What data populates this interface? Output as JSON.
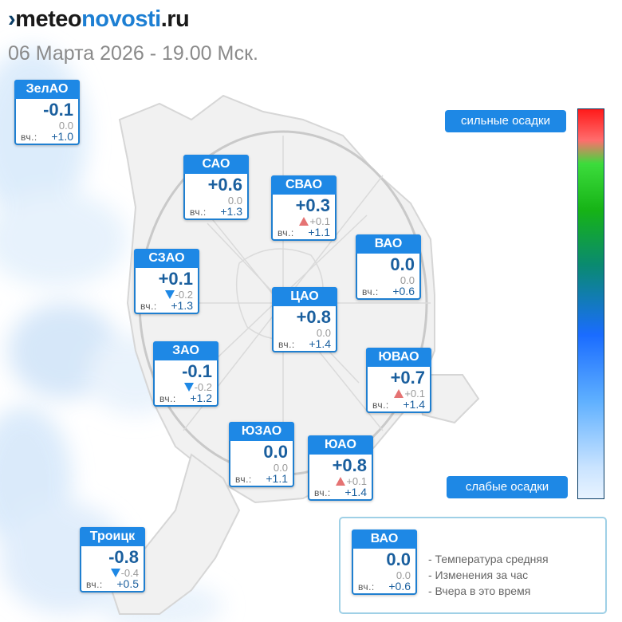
{
  "brand": {
    "prefix_mark": "›",
    "part1": "meteo",
    "part2": "novosti",
    "part3": ".ru"
  },
  "datetime": "06 Марта 2026 - 19.00 Мск.",
  "yesterday_label": "вч.:",
  "cards": [
    {
      "id": "zelao",
      "name": "ЗелАО",
      "temp": "-0.1",
      "change": "0.0",
      "trend": "none",
      "yesterday": "+1.0"
    },
    {
      "id": "sao",
      "name": "САО",
      "temp": "+0.6",
      "change": "0.0",
      "trend": "none",
      "yesterday": "+1.3"
    },
    {
      "id": "svao",
      "name": "СВАО",
      "temp": "+0.3",
      "change": "+0.1",
      "trend": "up",
      "yesterday": "+1.1"
    },
    {
      "id": "vao",
      "name": "ВАО",
      "temp": "0.0",
      "change": "0.0",
      "trend": "none",
      "yesterday": "+0.6"
    },
    {
      "id": "szao",
      "name": "СЗАО",
      "temp": "+0.1",
      "change": "-0.2",
      "trend": "down",
      "yesterday": "+1.3"
    },
    {
      "id": "cao",
      "name": "ЦАО",
      "temp": "+0.8",
      "change": "0.0",
      "trend": "none",
      "yesterday": "+1.4"
    },
    {
      "id": "zao",
      "name": "ЗАО",
      "temp": "-0.1",
      "change": "-0.2",
      "trend": "down",
      "yesterday": "+1.2"
    },
    {
      "id": "yuvao",
      "name": "ЮВАО",
      "temp": "+0.7",
      "change": "+0.1",
      "trend": "up",
      "yesterday": "+1.4"
    },
    {
      "id": "yuzao",
      "name": "ЮЗАО",
      "temp": "0.0",
      "change": "0.0",
      "trend": "none",
      "yesterday": "+1.1"
    },
    {
      "id": "yuao",
      "name": "ЮАО",
      "temp": "+0.8",
      "change": "+0.1",
      "trend": "up",
      "yesterday": "+1.4"
    },
    {
      "id": "troitsk",
      "name": "Троицк",
      "temp": "-0.8",
      "change": "-0.4",
      "trend": "down",
      "yesterday": "+0.5"
    }
  ],
  "precip_scale": {
    "top_label": "сильные осадки",
    "bottom_label": "слабые осадки",
    "colors": [
      "#ff1a1a",
      "#ff6d6d",
      "#3cdc3c",
      "#16b316",
      "#0a8a70",
      "#1a6cff",
      "#5fb0ff",
      "#c9e3ff",
      "#e8f3ff"
    ]
  },
  "legend": {
    "sample": {
      "name": "ВАО",
      "temp": "0.0",
      "change": "0.0",
      "yesterday": "+0.6"
    },
    "lines": [
      "- Температура средняя",
      "- Изменения за час",
      "- Вчера в это время"
    ]
  },
  "colors": {
    "card_header": "#1e88e5",
    "temp_text": "#1a5f9e",
    "trend_up": "#e57373",
    "trend_down": "#1e88e5"
  }
}
